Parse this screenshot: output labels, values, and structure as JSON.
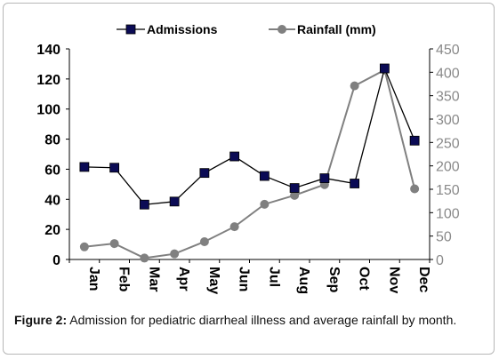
{
  "caption": {
    "label": "Figure 2:",
    "text": "Admission for pediatric diarrheal illness and average rainfall by month."
  },
  "chart_data": {
    "type": "line",
    "categories": [
      "Jan",
      "Feb",
      "Mar",
      "Apr",
      "May",
      "Jun",
      "Jul",
      "Aug",
      "Sep",
      "Oct",
      "Nov",
      "Dec"
    ],
    "series": [
      {
        "name": "Admissions",
        "axis": "left",
        "color": "#000000",
        "marker": "square",
        "marker_color": "#0b0b55",
        "values": [
          61.5,
          61,
          36.5,
          38.5,
          57.5,
          68.5,
          55.5,
          47.5,
          54,
          50.5,
          127,
          79
        ]
      },
      {
        "name": "Rainfall (mm)",
        "axis": "right",
        "color": "#808080",
        "marker": "circle",
        "marker_color": "#808080",
        "values": [
          27,
          34,
          3,
          12,
          38,
          70,
          118,
          137,
          160,
          371,
          405,
          151
        ]
      }
    ],
    "y_left": {
      "min": 0,
      "max": 140,
      "ticks": [
        0,
        20,
        40,
        60,
        80,
        100,
        120,
        140
      ]
    },
    "y_right": {
      "min": 0,
      "max": 450,
      "ticks": [
        0,
        50,
        100,
        150,
        200,
        250,
        300,
        350,
        400,
        450
      ]
    },
    "grid": false,
    "legend_position": "top"
  }
}
